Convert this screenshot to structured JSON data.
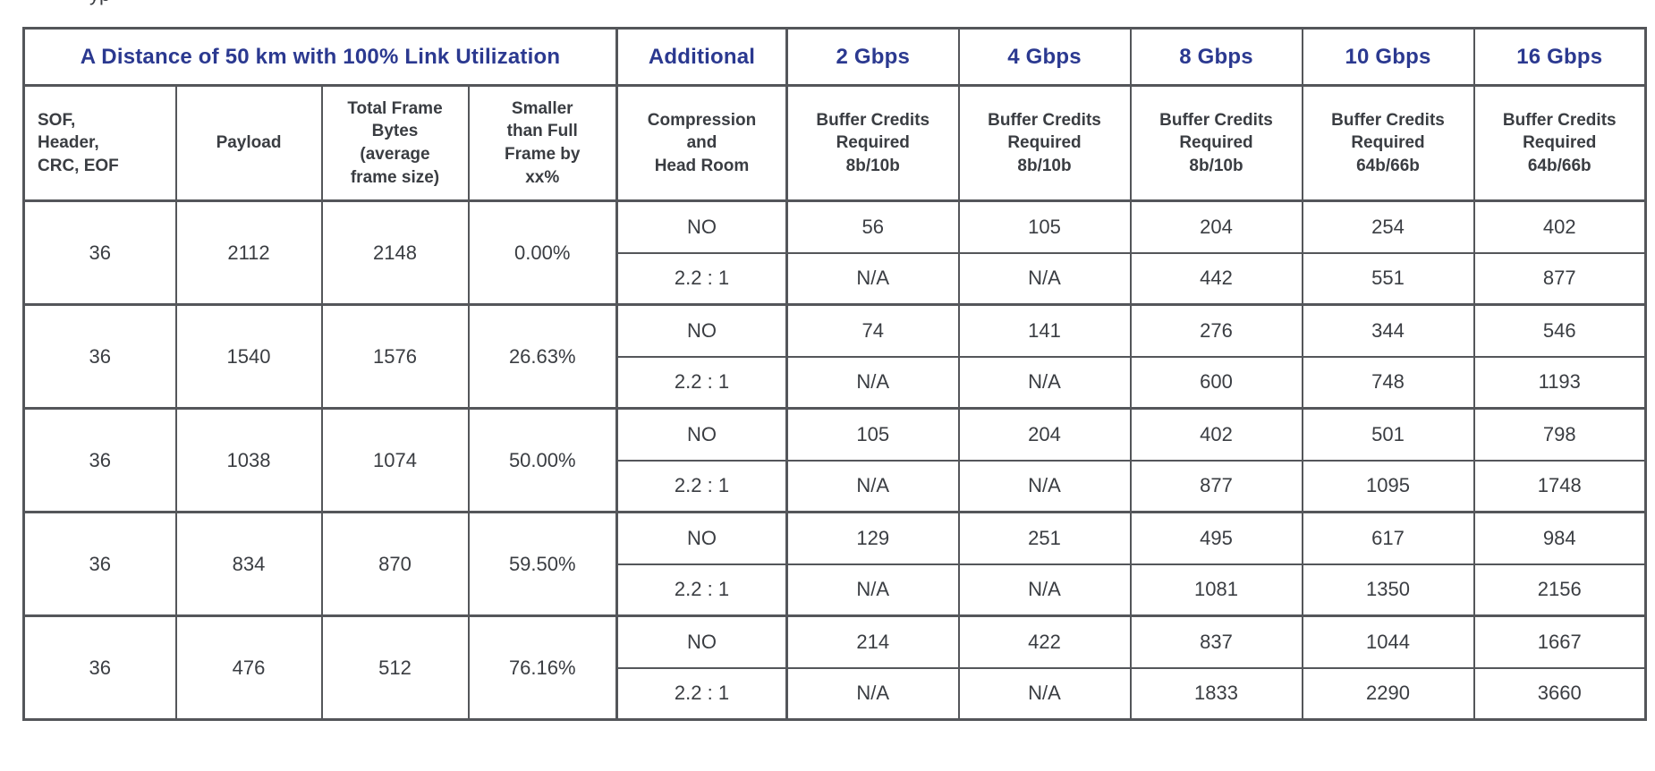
{
  "page": {
    "top_fragment": "yp"
  },
  "colors": {
    "accent": "#2B3990",
    "border": "#54565A",
    "text": "#3A3D42"
  },
  "table": {
    "header_row1": {
      "title": "A Distance of 50 km with 100% Link Utilization",
      "additional": "Additional",
      "speeds": [
        "2 Gbps",
        "4 Gbps",
        "8 Gbps",
        "10 Gbps",
        "16 Gbps"
      ]
    },
    "header_row2": [
      "SOF,\nHeader,\nCRC, EOF",
      "Payload",
      "Total Frame\nBytes\n(average\nframe size)",
      "Smaller\nthan Full\nFrame by\nxx%",
      "Compression\nand\nHead Room",
      "Buffer Credits\nRequired\n8b/10b",
      "Buffer Credits\nRequired\n8b/10b",
      "Buffer Credits\nRequired\n8b/10b",
      "Buffer Credits\nRequired\n64b/66b",
      "Buffer Credits\nRequired\n64b/66b"
    ],
    "groups": [
      {
        "sof": "36",
        "payload": "2112",
        "total_frame_bytes": "2148",
        "smaller_by": "0.00%",
        "rows": [
          {
            "compression": "NO",
            "values": [
              "56",
              "105",
              "204",
              "254",
              "402"
            ]
          },
          {
            "compression": "2.2 : 1",
            "values": [
              "N/A",
              "N/A",
              "442",
              "551",
              "877"
            ]
          }
        ]
      },
      {
        "sof": "36",
        "payload": "1540",
        "total_frame_bytes": "1576",
        "smaller_by": "26.63%",
        "rows": [
          {
            "compression": "NO",
            "values": [
              "74",
              "141",
              "276",
              "344",
              "546"
            ]
          },
          {
            "compression": "2.2 : 1",
            "values": [
              "N/A",
              "N/A",
              "600",
              "748",
              "1193"
            ]
          }
        ]
      },
      {
        "sof": "36",
        "payload": "1038",
        "total_frame_bytes": "1074",
        "smaller_by": "50.00%",
        "rows": [
          {
            "compression": "NO",
            "values": [
              "105",
              "204",
              "402",
              "501",
              "798"
            ]
          },
          {
            "compression": "2.2 : 1",
            "values": [
              "N/A",
              "N/A",
              "877",
              "1095",
              "1748"
            ]
          }
        ]
      },
      {
        "sof": "36",
        "payload": "834",
        "total_frame_bytes": "870",
        "smaller_by": "59.50%",
        "rows": [
          {
            "compression": "NO",
            "values": [
              "129",
              "251",
              "495",
              "617",
              "984"
            ]
          },
          {
            "compression": "2.2 : 1",
            "values": [
              "N/A",
              "N/A",
              "1081",
              "1350",
              "2156"
            ]
          }
        ]
      },
      {
        "sof": "36",
        "payload": "476",
        "total_frame_bytes": "512",
        "smaller_by": "76.16%",
        "rows": [
          {
            "compression": "NO",
            "values": [
              "214",
              "422",
              "837",
              "1044",
              "1667"
            ]
          },
          {
            "compression": "2.2 : 1",
            "values": [
              "N/A",
              "N/A",
              "1833",
              "2290",
              "3660"
            ]
          }
        ]
      }
    ]
  }
}
